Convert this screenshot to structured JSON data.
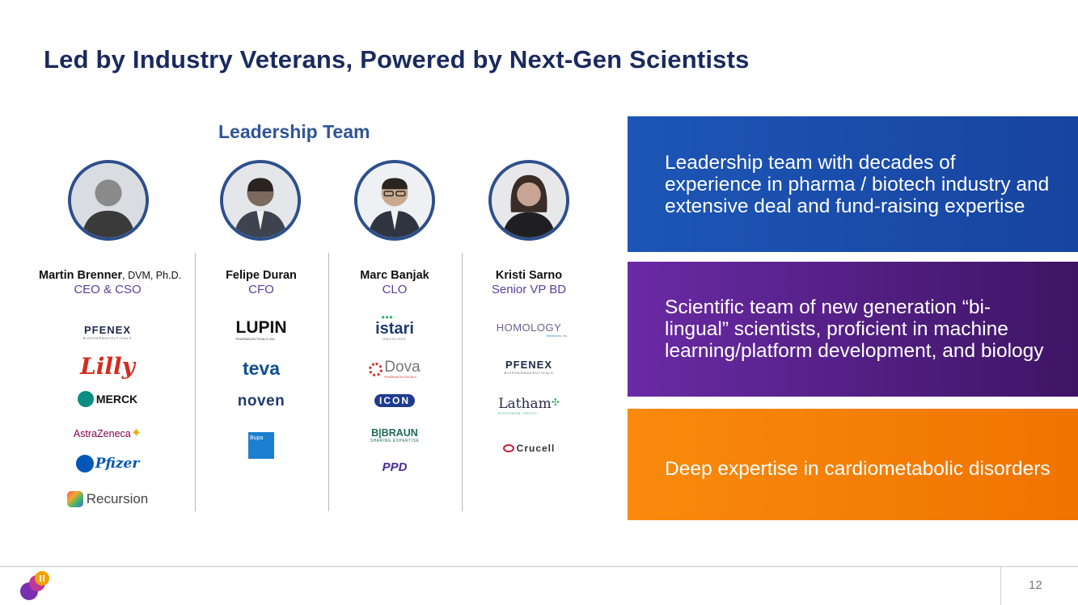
{
  "slide": {
    "title": "Led by Industry Veterans, Powered by Next-Gen Scientists",
    "section_heading": "Leadership Team",
    "page_number": "12"
  },
  "people": [
    {
      "name": "Martin Brenner",
      "credentials": ", DVM, Ph.D.",
      "role": "CEO & CSO",
      "logos": [
        "PFENEX",
        "Lilly",
        "MERCK",
        "AstraZeneca",
        "Pfizer",
        "Recursion"
      ]
    },
    {
      "name": "Felipe Duran",
      "credentials": "",
      "role": "CFO",
      "logos": [
        "LUPIN",
        "teva",
        "noven",
        "Bupa"
      ]
    },
    {
      "name": "Marc Banjak",
      "credentials": "",
      "role": "CLO",
      "logos": [
        "istari",
        "Dova",
        "ICON",
        "B|BRAUN",
        "PPD"
      ]
    },
    {
      "name": "Kristi Sarno",
      "credentials": "",
      "role": "Senior VP BD",
      "logos": [
        "HOMOLOGY",
        "PFENEX",
        "Latham",
        "Crucell"
      ]
    }
  ],
  "logo_subtext": {
    "pfenex": "BIOPHARMACEUTICALS",
    "lupin": "PHARMACEUTICALS, INC.",
    "istari": "ONCOLOGY",
    "dova": "PHARMACEUTICALS",
    "braun": "SHARING EXPERTISE",
    "homology": "Medicines, Inc.",
    "latham": "BIOPHARM GROUP"
  },
  "highlights": [
    "Leadership team with decades of experience in pharma / biotech industry and extensive deal and fund-raising expertise",
    "Scientific team of new generation “bi-lingual” scientists, proficient in machine learning/platform development, and biology",
    "Deep expertise in cardiometabolic disorders"
  ],
  "colors": {
    "title": "#1a2a5e",
    "section_heading": "#2f5597",
    "role": "#5a3f9e",
    "card_blue": "#1d56b6",
    "card_purple": "#6a2aa5",
    "card_orange": "#f98a0c"
  }
}
